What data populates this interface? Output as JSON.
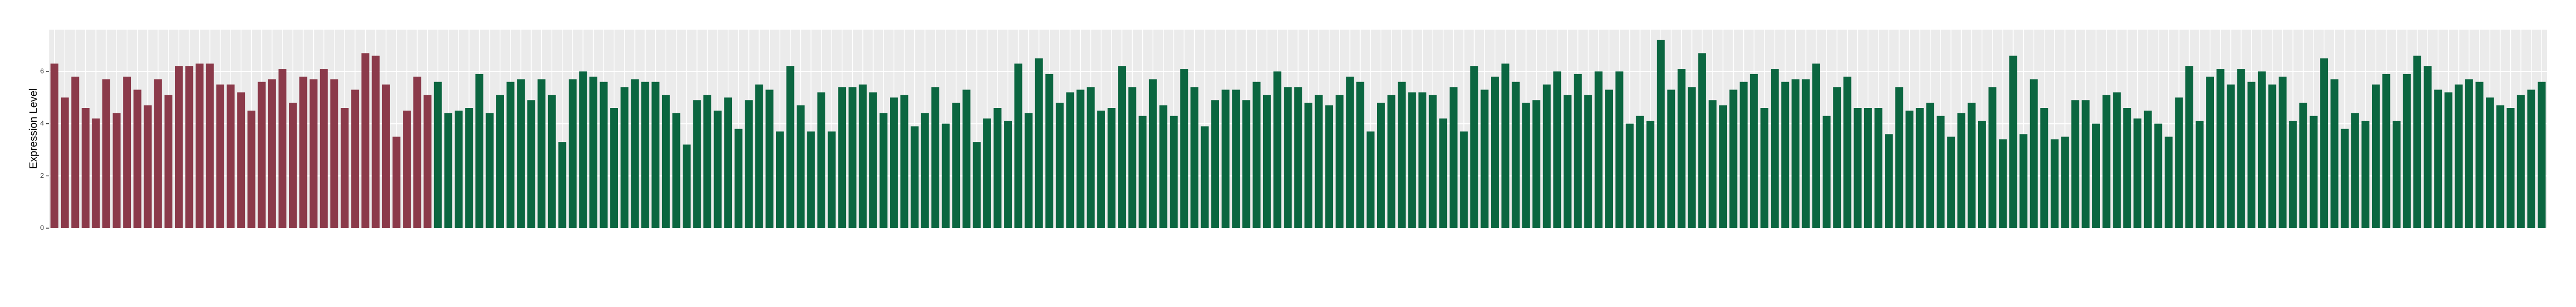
{
  "chart_data": {
    "type": "bar",
    "y_label": "Expression Level",
    "ylim": [
      0,
      7.6
    ],
    "yticks": [
      0,
      2,
      4,
      6
    ],
    "grid": true,
    "categories": [
      null,
      null,
      null,
      null,
      null,
      null,
      null,
      null,
      null,
      null,
      null,
      null,
      null,
      null,
      null,
      null,
      null,
      null,
      null,
      null,
      null,
      null,
      null,
      null,
      null,
      null,
      null,
      null,
      null,
      null,
      null,
      null,
      null,
      null,
      null,
      null,
      null,
      null,
      null,
      null,
      null,
      null,
      null,
      null,
      null,
      null,
      null,
      null,
      null,
      null,
      null,
      null,
      null,
      null,
      null,
      null,
      null,
      null,
      null,
      null,
      null,
      null,
      null,
      null,
      null,
      null,
      null,
      null,
      null,
      null,
      null,
      null,
      null,
      null,
      null,
      null,
      null,
      null,
      null,
      null,
      null,
      null,
      null,
      null,
      null,
      null,
      null,
      null,
      null,
      null,
      null,
      null,
      null,
      null,
      null,
      null,
      null,
      null,
      null,
      null,
      null,
      null,
      null,
      null,
      null,
      null,
      null,
      null,
      null,
      null,
      null,
      null,
      null,
      null,
      null,
      null,
      null,
      null,
      null,
      null,
      null,
      null,
      null,
      null,
      null,
      null,
      null,
      null,
      null,
      null,
      null,
      null,
      null,
      null,
      null,
      null,
      null,
      null,
      null,
      null,
      null,
      null,
      null,
      null,
      null,
      null,
      null,
      null,
      null,
      null,
      null,
      null,
      null,
      null,
      null,
      null,
      null,
      null,
      null,
      null,
      null,
      null,
      null,
      null,
      null,
      null,
      null,
      null,
      null,
      null,
      null,
      null,
      null,
      null,
      null,
      null,
      null,
      null,
      null,
      null,
      null,
      null,
      null,
      null,
      null,
      null,
      null,
      null,
      null,
      null,
      null,
      null,
      null,
      null,
      null,
      null,
      null,
      null,
      null,
      null,
      null,
      null,
      null,
      null,
      null,
      null,
      null,
      null,
      null,
      null,
      null,
      null,
      null,
      null,
      null,
      null,
      null,
      null,
      null,
      null,
      null,
      null,
      null,
      null,
      null,
      null,
      null,
      null,
      null,
      null,
      null,
      null,
      null,
      null,
      null,
      null,
      null,
      null,
      null,
      null,
      null
    ],
    "values": [
      6.3,
      5.0,
      5.8,
      4.6,
      4.2,
      5.7,
      4.4,
      5.8,
      5.3,
      4.7,
      5.7,
      5.1,
      6.2,
      6.2,
      6.3,
      6.3,
      5.5,
      5.5,
      5.2,
      4.5,
      5.6,
      5.7,
      6.1,
      4.8,
      5.8,
      5.7,
      6.1,
      5.7,
      4.6,
      5.3,
      6.7,
      6.6,
      5.5,
      3.5,
      4.5,
      5.8,
      5.1,
      5.6,
      4.4,
      4.5,
      4.6,
      5.9,
      4.4,
      5.1,
      5.6,
      5.7,
      4.9,
      5.7,
      5.1,
      3.3,
      5.7,
      6.0,
      5.8,
      5.6,
      4.6,
      5.4,
      5.7,
      5.6,
      5.6,
      5.1,
      4.4,
      3.2,
      4.9,
      5.1,
      4.5,
      5.0,
      3.8,
      4.9,
      5.5,
      5.3,
      3.7,
      6.2,
      4.7,
      3.7,
      5.2,
      3.7,
      5.4,
      5.4,
      5.5,
      5.2,
      4.4,
      5.0,
      5.1,
      3.9,
      4.4,
      5.4,
      4.0,
      4.8,
      5.3,
      3.3,
      4.2,
      4.6,
      4.1,
      6.3,
      4.4,
      6.5,
      5.9,
      4.8,
      5.2,
      5.3,
      5.4,
      4.5,
      4.6,
      6.2,
      5.4,
      4.3,
      5.7,
      4.7,
      4.3,
      6.1,
      5.4,
      3.9,
      4.9,
      5.3,
      5.3,
      4.9,
      5.6,
      5.1,
      6.0,
      5.4,
      5.4,
      4.8,
      5.1,
      4.7,
      5.1,
      5.8,
      5.6,
      3.7,
      4.8,
      5.1,
      5.6,
      5.2,
      5.2,
      5.1,
      4.2,
      5.4,
      3.7,
      6.2,
      5.3,
      5.8,
      6.3,
      5.6,
      4.8,
      4.9,
      5.5,
      6.0,
      5.1,
      5.9,
      5.1,
      6.0,
      5.3,
      6.0,
      4.0,
      4.3,
      4.1,
      7.2,
      5.3,
      6.1,
      5.4,
      6.7,
      4.9,
      4.7,
      5.3,
      5.6,
      5.9,
      4.6,
      6.1,
      5.6,
      5.7,
      5.7,
      6.3,
      4.3,
      5.4,
      5.8,
      4.6,
      4.6,
      4.6,
      3.6,
      5.4,
      4.5,
      4.6,
      4.8,
      4.3,
      3.5,
      4.4,
      4.8,
      4.1,
      5.4,
      3.4,
      6.6,
      3.6,
      5.7,
      4.6,
      3.4,
      3.5,
      4.9,
      4.9,
      4.0,
      5.1,
      5.2,
      4.6,
      4.2,
      4.5,
      4.0,
      3.5,
      5.0,
      6.2,
      4.1,
      5.8,
      6.1,
      5.5,
      6.1,
      5.6,
      6.0,
      5.5,
      5.8,
      4.1,
      4.8,
      4.3,
      6.5,
      5.7,
      3.8,
      4.4,
      4.1,
      5.5,
      5.9,
      4.1,
      5.9,
      6.6,
      6.2,
      5.3,
      5.2,
      5.5,
      5.7,
      5.6,
      5.0,
      4.7,
      4.6,
      5.1,
      5.3,
      5.6
    ],
    "colors": [
      "#8b3a4a",
      "#8b3a4a",
      "#8b3a4a",
      "#8b3a4a",
      "#8b3a4a",
      "#8b3a4a",
      "#8b3a4a",
      "#8b3a4a",
      "#8b3a4a",
      "#8b3a4a",
      "#8b3a4a",
      "#8b3a4a",
      "#8b3a4a",
      "#8b3a4a",
      "#8b3a4a",
      "#8b3a4a",
      "#8b3a4a",
      "#8b3a4a",
      "#8b3a4a",
      "#8b3a4a",
      "#8b3a4a",
      "#8b3a4a",
      "#8b3a4a",
      "#8b3a4a",
      "#8b3a4a",
      "#8b3a4a",
      "#8b3a4a",
      "#8b3a4a",
      "#8b3a4a",
      "#8b3a4a",
      "#8b3a4a",
      "#8b3a4a",
      "#8b3a4a",
      "#8b3a4a",
      "#8b3a4a",
      "#8b3a4a",
      "#8b3a4a",
      "#0b6640",
      "#0b6640",
      "#0b6640",
      "#0b6640",
      "#0b6640",
      "#0b6640",
      "#0b6640",
      "#0b6640",
      "#0b6640",
      "#0b6640",
      "#0b6640",
      "#0b6640",
      "#0b6640",
      "#0b6640",
      "#0b6640",
      "#0b6640",
      "#0b6640",
      "#0b6640",
      "#0b6640",
      "#0b6640",
      "#0b6640",
      "#0b6640",
      "#0b6640",
      "#0b6640",
      "#0b6640",
      "#0b6640",
      "#0b6640",
      "#0b6640",
      "#0b6640",
      "#0b6640",
      "#0b6640",
      "#0b6640",
      "#0b6640",
      "#0b6640",
      "#0b6640",
      "#0b6640",
      "#0b6640",
      "#0b6640",
      "#0b6640",
      "#0b6640",
      "#0b6640",
      "#0b6640",
      "#0b6640",
      "#0b6640",
      "#0b6640",
      "#0b6640",
      "#0b6640",
      "#0b6640",
      "#0b6640",
      "#0b6640",
      "#0b6640",
      "#0b6640",
      "#0b6640",
      "#0b6640",
      "#0b6640",
      "#0b6640",
      "#0b6640",
      "#0b6640",
      "#0b6640",
      "#0b6640",
      "#0b6640",
      "#0b6640",
      "#0b6640",
      "#0b6640",
      "#0b6640",
      "#0b6640",
      "#0b6640",
      "#0b6640",
      "#0b6640",
      "#0b6640",
      "#0b6640",
      "#0b6640",
      "#0b6640",
      "#0b6640",
      "#0b6640",
      "#0b6640",
      "#0b6640",
      "#0b6640",
      "#0b6640",
      "#0b6640",
      "#0b6640",
      "#0b6640",
      "#0b6640",
      "#0b6640",
      "#0b6640",
      "#0b6640",
      "#0b6640",
      "#0b6640",
      "#0b6640",
      "#0b6640",
      "#0b6640",
      "#0b6640",
      "#0b6640",
      "#0b6640",
      "#0b6640",
      "#0b6640",
      "#0b6640",
      "#0b6640",
      "#0b6640",
      "#0b6640",
      "#0b6640",
      "#0b6640",
      "#0b6640",
      "#0b6640",
      "#0b6640",
      "#0b6640",
      "#0b6640",
      "#0b6640",
      "#0b6640",
      "#0b6640",
      "#0b6640",
      "#0b6640",
      "#0b6640",
      "#0b6640",
      "#0b6640",
      "#0b6640",
      "#0b6640",
      "#0b6640",
      "#0b6640",
      "#0b6640",
      "#0b6640",
      "#0b6640",
      "#0b6640",
      "#0b6640",
      "#0b6640",
      "#0b6640",
      "#0b6640",
      "#0b6640",
      "#0b6640",
      "#0b6640",
      "#0b6640",
      "#0b6640",
      "#0b6640",
      "#0b6640",
      "#0b6640",
      "#0b6640",
      "#0b6640",
      "#0b6640",
      "#0b6640",
      "#0b6640",
      "#0b6640",
      "#0b6640",
      "#0b6640",
      "#0b6640",
      "#0b6640",
      "#0b6640",
      "#0b6640",
      "#0b6640",
      "#0b6640",
      "#0b6640",
      "#0b6640",
      "#0b6640",
      "#0b6640",
      "#0b6640",
      "#0b6640",
      "#0b6640",
      "#0b6640",
      "#0b6640",
      "#0b6640",
      "#0b6640",
      "#0b6640",
      "#0b6640",
      "#0b6640",
      "#0b6640",
      "#0b6640",
      "#0b6640",
      "#0b6640",
      "#0b6640",
      "#0b6640",
      "#0b6640",
      "#0b6640",
      "#0b6640",
      "#0b6640",
      "#0b6640",
      "#0b6640",
      "#0b6640",
      "#0b6640",
      "#0b6640",
      "#0b6640",
      "#0b6640",
      "#0b6640",
      "#0b6640",
      "#0b6640",
      "#0b6640",
      "#0b6640",
      "#0b6640",
      "#0b6640",
      "#0b6640",
      "#0b6640",
      "#0b6640",
      "#0b6640",
      "#0b6640",
      "#0b6640",
      "#0b6640",
      "#0b6640",
      "#0b6640",
      "#0b6640",
      "#0b6640",
      "#0b6640",
      "#0b6640",
      "#0b6640",
      "#0b6640",
      "#0b6640",
      "#0b6640"
    ]
  }
}
